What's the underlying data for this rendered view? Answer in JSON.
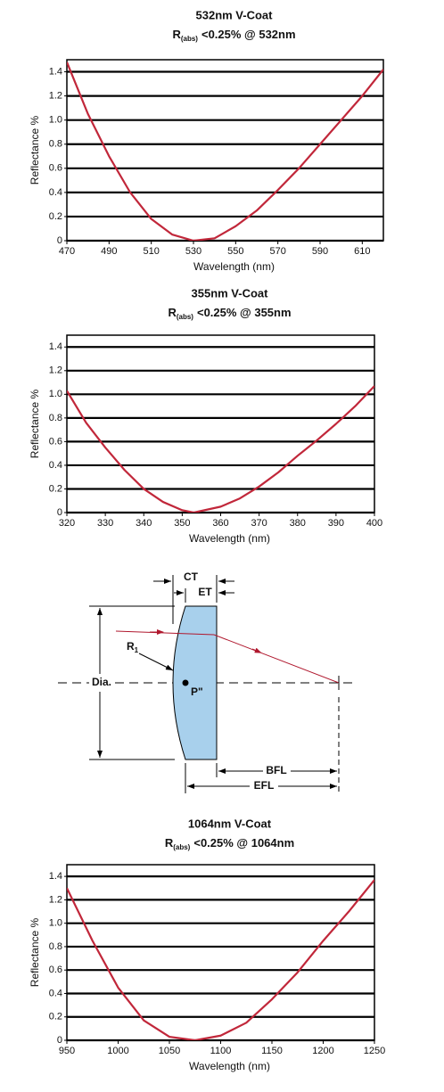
{
  "chart_data": [
    {
      "type": "line",
      "title": "532nm V-Coat",
      "subtitle": [
        "R",
        "(abs)",
        "<0.25% @ 532nm"
      ],
      "x_label": "Wavelength (nm)",
      "y_label": "Reflectance %",
      "x": [
        470,
        480,
        490,
        500,
        510,
        520,
        530,
        540,
        550,
        560,
        570,
        580,
        590,
        600,
        610,
        620
      ],
      "series": [
        {
          "color": "#c1273a",
          "values": [
            1.48,
            1.05,
            0.7,
            0.4,
            0.18,
            0.05,
            0.0,
            0.02,
            0.12,
            0.25,
            0.42,
            0.6,
            0.8,
            1.0,
            1.2,
            1.42
          ]
        }
      ],
      "xlim": [
        470,
        620
      ],
      "xticks": [
        470,
        490,
        510,
        530,
        550,
        570,
        590,
        610
      ],
      "ylim": [
        0,
        1.5
      ],
      "yticks": [
        0,
        0.2,
        0.4,
        0.6,
        0.8,
        {
          "value": 1,
          "label": "1.0"
        },
        1.2,
        1.4
      ],
      "grid": true
    },
    {
      "type": "line",
      "title": "355nm V-Coat",
      "subtitle": [
        "R",
        "(abs)",
        "<0.25% @ 355nm"
      ],
      "x_label": "Wavelength (nm)",
      "y_label": "Reflectance %",
      "x": [
        320,
        325,
        330,
        335,
        340,
        345,
        350,
        353,
        360,
        365,
        370,
        375,
        380,
        385,
        390,
        395,
        400
      ],
      "series": [
        {
          "color": "#c1273a",
          "values": [
            1.03,
            0.76,
            0.55,
            0.36,
            0.2,
            0.09,
            0.02,
            0.0,
            0.05,
            0.12,
            0.22,
            0.34,
            0.48,
            0.61,
            0.75,
            0.9,
            1.07
          ]
        }
      ],
      "xlim": [
        320,
        400
      ],
      "xticks": [
        320,
        330,
        340,
        350,
        360,
        370,
        380,
        390,
        400
      ],
      "ylim": [
        0,
        1.5
      ],
      "yticks": [
        0,
        0.2,
        0.4,
        0.6,
        0.8,
        {
          "value": 1,
          "label": "1.0"
        },
        1.2,
        1.4
      ],
      "grid": true
    },
    {
      "type": "line",
      "title": "1064nm V-Coat",
      "subtitle": [
        "R",
        "(abs)",
        "<0.25% @ 1064nm"
      ],
      "x_label": "Wavelength (nm)",
      "y_label": "Reflectance %",
      "x": [
        950,
        975,
        1000,
        1025,
        1050,
        1075,
        1100,
        1125,
        1150,
        1175,
        1200,
        1225,
        1250
      ],
      "series": [
        {
          "color": "#c1273a",
          "values": [
            1.3,
            0.85,
            0.45,
            0.17,
            0.03,
            0.0,
            0.04,
            0.15,
            0.35,
            0.58,
            0.85,
            1.1,
            1.37
          ]
        }
      ],
      "xlim": [
        950,
        1250
      ],
      "xticks": [
        950,
        1000,
        1050,
        1100,
        1150,
        1200,
        1250
      ],
      "ylim": [
        0,
        1.5
      ],
      "yticks": [
        0,
        0.2,
        0.4,
        0.6,
        0.8,
        {
          "value": 1,
          "label": "1.0"
        },
        1.2,
        1.4
      ],
      "grid": true
    }
  ],
  "diagram": {
    "ct": "CT",
    "et": "ET",
    "r1": [
      "R",
      "1"
    ],
    "dia": "Dia.",
    "p": "P\"",
    "bfl": "BFL",
    "efl": "EFL"
  }
}
